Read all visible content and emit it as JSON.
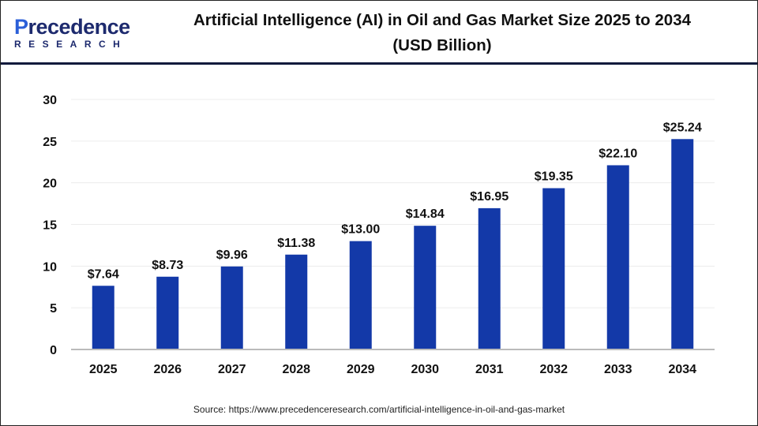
{
  "logo": {
    "line1": "Precedence",
    "line2": "RESEARCH"
  },
  "title": "Artificial Intelligence (AI) in Oil and Gas Market Size 2025 to 2034",
  "subtitle": "(USD Billion)",
  "source": "Source: https://www.precedenceresearch.com/artificial-intelligence-in-oil-and-gas-market",
  "chart_data": {
    "type": "bar",
    "categories": [
      "2025",
      "2026",
      "2027",
      "2028",
      "2029",
      "2030",
      "2031",
      "2032",
      "2033",
      "2034"
    ],
    "values": [
      7.64,
      8.73,
      9.96,
      11.38,
      13.0,
      14.84,
      16.95,
      19.35,
      22.1,
      25.24
    ],
    "data_labels": [
      "$7.64",
      "$8.73",
      "$9.96",
      "$11.38",
      "$13.00",
      "$14.84",
      "$16.95",
      "$19.35",
      "$22.10",
      "$25.24"
    ],
    "title": "Artificial Intelligence (AI) in Oil and Gas Market Size 2025 to 2034 (USD Billion)",
    "xlabel": "",
    "ylabel": "",
    "ylim": [
      0,
      30
    ],
    "yticks": [
      0,
      5,
      10,
      15,
      20,
      25,
      30
    ],
    "grid": true,
    "bar_color": "#1339a8"
  }
}
